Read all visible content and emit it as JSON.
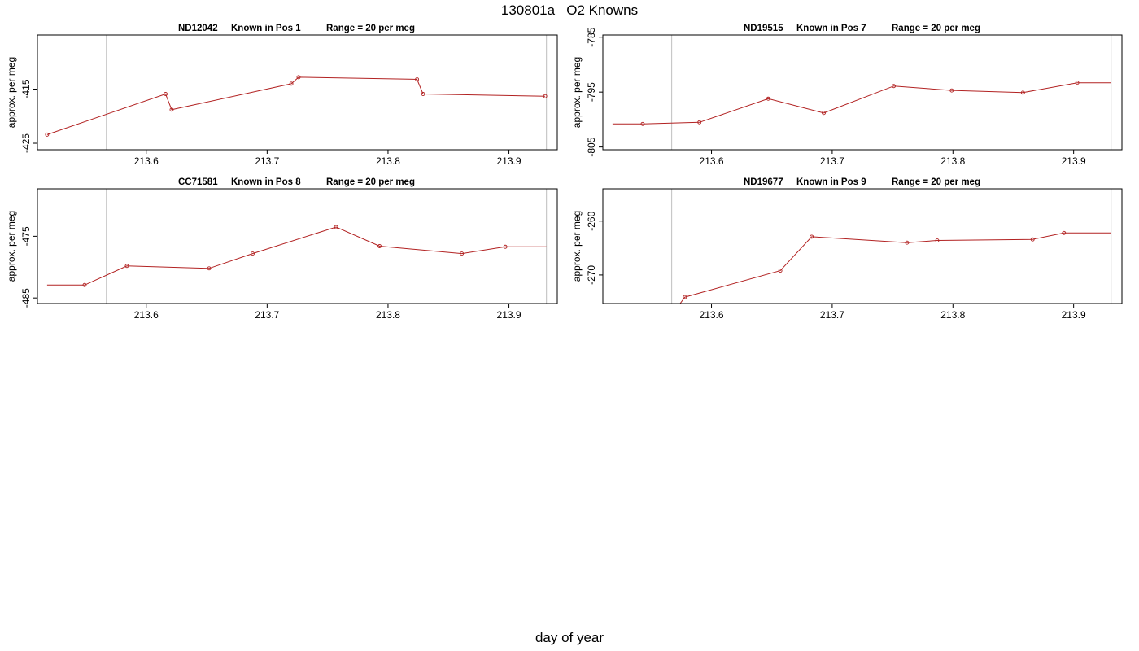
{
  "page": {
    "title": "130801a   O2 Knowns",
    "x_caption": "day of year"
  },
  "colors": {
    "series_line": "#b22222",
    "vline": "#c8c8c8",
    "axis": "#000000"
  },
  "chart_data": [
    {
      "type": "line",
      "title_parts": [
        "ND12042",
        "Known in Pos 1",
        "Range = 20 per meg"
      ],
      "xlabel": "",
      "ylabel": "approx. per meg",
      "xlim": [
        213.51,
        213.94
      ],
      "ylim": [
        -426.2,
        -405.0
      ],
      "xticks": [
        213.6,
        213.7,
        213.8,
        213.9
      ],
      "xtick_labels": [
        "213.6",
        "213.7",
        "213.8",
        "213.9"
      ],
      "yticks": [
        -415,
        -425
      ],
      "ytick_labels": [
        "-415",
        "-425"
      ],
      "vlines": [
        213.567,
        213.931
      ],
      "points": {
        "x": [
          213.518,
          213.616,
          213.621,
          213.72,
          213.726,
          213.824,
          213.829,
          213.93
        ],
        "y": [
          -423.4,
          -415.9,
          -418.8,
          -414.0,
          -412.8,
          -413.2,
          -415.9,
          -416.3
        ]
      },
      "end_segment": null
    },
    {
      "type": "line",
      "title_parts": [
        "ND19515",
        "Known in Pos 7",
        "Range = 20 per meg"
      ],
      "xlabel": "",
      "ylabel": "approx. per meg",
      "xlim": [
        213.51,
        213.94
      ],
      "ylim": [
        -805.5,
        -784.6
      ],
      "xticks": [
        213.6,
        213.7,
        213.8,
        213.9
      ],
      "xtick_labels": [
        "213.6",
        "213.7",
        "213.8",
        "213.9"
      ],
      "yticks": [
        -785,
        -795,
        -805
      ],
      "ytick_labels": [
        "-785",
        "-795",
        "-805"
      ],
      "vlines": [
        213.567,
        213.931
      ],
      "points": {
        "x": [
          213.543,
          213.59,
          213.647,
          213.693,
          213.751,
          213.799,
          213.858,
          213.903
        ],
        "y": [
          -800.8,
          -800.5,
          -796.2,
          -798.8,
          -793.9,
          -794.7,
          -795.1,
          -793.3
        ]
      },
      "start_segment": {
        "x": [
          213.518
        ],
        "y": [
          -800.8
        ]
      },
      "end_segment": {
        "x": [
          213.931
        ],
        "y": [
          -793.3
        ]
      }
    },
    {
      "type": "line",
      "title_parts": [
        "CC71581",
        "Known in Pos 8",
        "Range = 20 per meg"
      ],
      "xlabel": "",
      "ylabel": "approx. per meg",
      "xlim": [
        213.51,
        213.94
      ],
      "ylim": [
        -485.9,
        -467.3
      ],
      "xticks": [
        213.6,
        213.7,
        213.8,
        213.9
      ],
      "xtick_labels": [
        "213.6",
        "213.7",
        "213.8",
        "213.9"
      ],
      "yticks": [
        -475,
        -485
      ],
      "ytick_labels": [
        "-475",
        "-485"
      ],
      "vlines": [
        213.567,
        213.931
      ],
      "points": {
        "x": [
          213.549,
          213.584,
          213.652,
          213.688,
          213.757,
          213.793,
          213.861,
          213.897
        ],
        "y": [
          -482.9,
          -479.8,
          -480.2,
          -477.8,
          -473.5,
          -476.6,
          -477.8,
          -476.7
        ]
      },
      "start_segment": {
        "x": [
          213.518
        ],
        "y": [
          -482.9
        ]
      },
      "end_segment": {
        "x": [
          213.931
        ],
        "y": [
          -476.7
        ]
      }
    },
    {
      "type": "line",
      "title_parts": [
        "ND19677",
        "Known in Pos 9",
        "Range = 20 per meg"
      ],
      "xlabel": "",
      "ylabel": "approx. per meg",
      "xlim": [
        213.51,
        213.94
      ],
      "ylim": [
        -275.3,
        -254.0
      ],
      "xticks": [
        213.6,
        213.7,
        213.8,
        213.9
      ],
      "xtick_labels": [
        "213.6",
        "213.7",
        "213.8",
        "213.9"
      ],
      "yticks": [
        -260,
        -270
      ],
      "ytick_labels": [
        "-260",
        "-270"
      ],
      "vlines": [
        213.567,
        213.931
      ],
      "points": {
        "x": [
          213.578,
          213.657,
          213.683,
          213.762,
          213.787,
          213.866,
          213.892
        ],
        "y": [
          -274.1,
          -269.2,
          -262.9,
          -264.0,
          -263.6,
          -263.4,
          -262.2
        ]
      },
      "start_segment": {
        "x": [
          213.574
        ],
        "y": [
          -275.3
        ]
      },
      "end_segment": {
        "x": [
          213.931
        ],
        "y": [
          -262.2
        ]
      }
    }
  ]
}
